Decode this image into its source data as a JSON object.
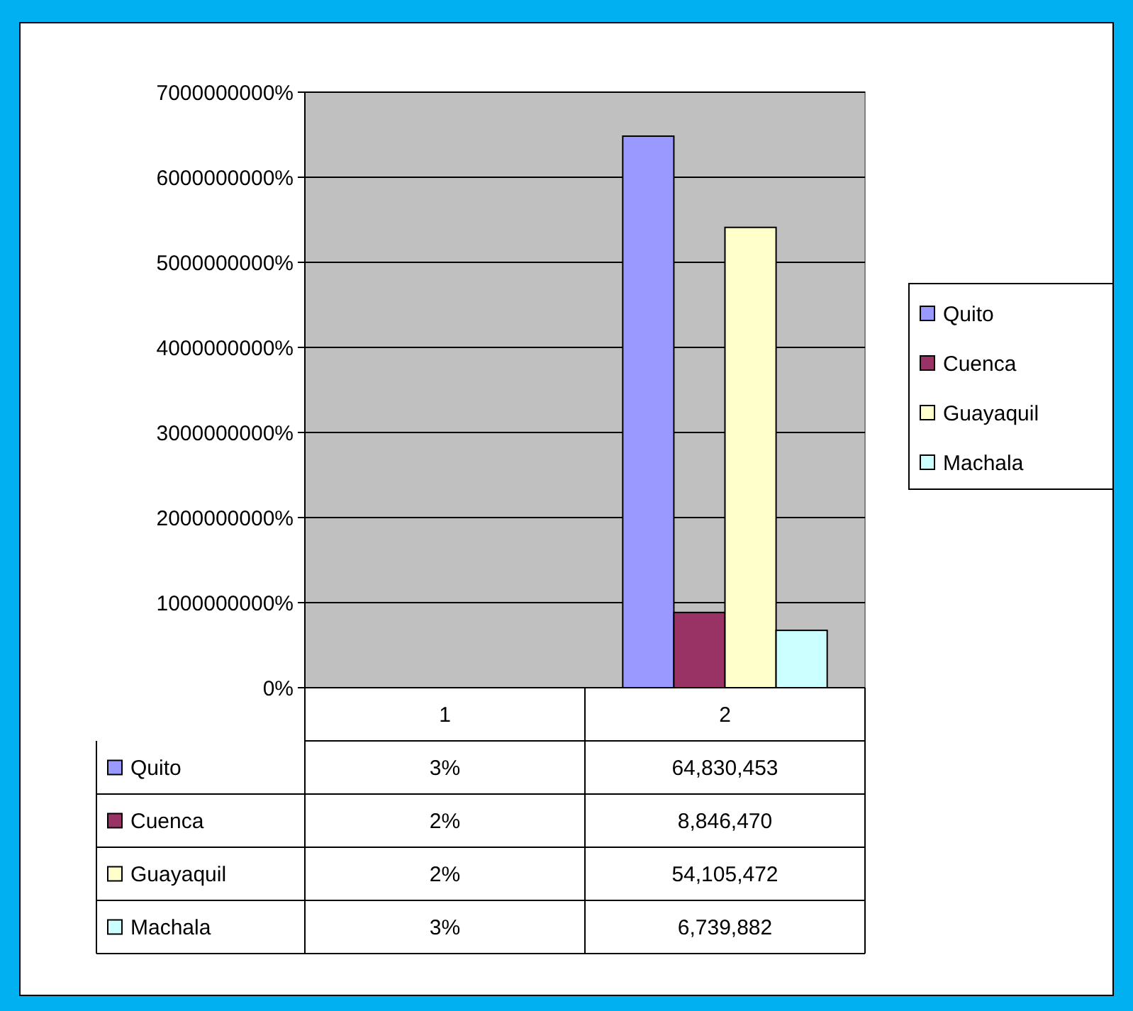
{
  "chart_data": {
    "type": "bar",
    "categories": [
      "1",
      "2"
    ],
    "series": [
      {
        "name": "Quito",
        "color": "#9999ff",
        "values": [
          0.03,
          64830453
        ],
        "value_labels": [
          "3%",
          "64,830,453"
        ]
      },
      {
        "name": "Cuenca",
        "color": "#993366",
        "values": [
          0.02,
          8846470
        ],
        "value_labels": [
          "2%",
          "8,846,470"
        ]
      },
      {
        "name": "Guayaquil",
        "color": "#ffffcc",
        "values": [
          0.02,
          54105472
        ],
        "value_labels": [
          "2%",
          "54,105,472"
        ]
      },
      {
        "name": "Machala",
        "color": "#ccffff",
        "values": [
          0.03,
          6739882
        ],
        "value_labels": [
          "3%",
          "6,739,882"
        ]
      }
    ],
    "ylim": [
      0,
      70000000
    ],
    "yticks": [
      {
        "value": 0,
        "label": "0%"
      },
      {
        "value": 10000000,
        "label": "1000000000%"
      },
      {
        "value": 20000000,
        "label": "2000000000%"
      },
      {
        "value": 30000000,
        "label": "3000000000%"
      },
      {
        "value": 40000000,
        "label": "4000000000%"
      },
      {
        "value": 50000000,
        "label": "5000000000%"
      },
      {
        "value": 60000000,
        "label": "6000000000%"
      },
      {
        "value": 70000000,
        "label": "7000000000%"
      }
    ],
    "grid": "y",
    "legend": "right"
  }
}
